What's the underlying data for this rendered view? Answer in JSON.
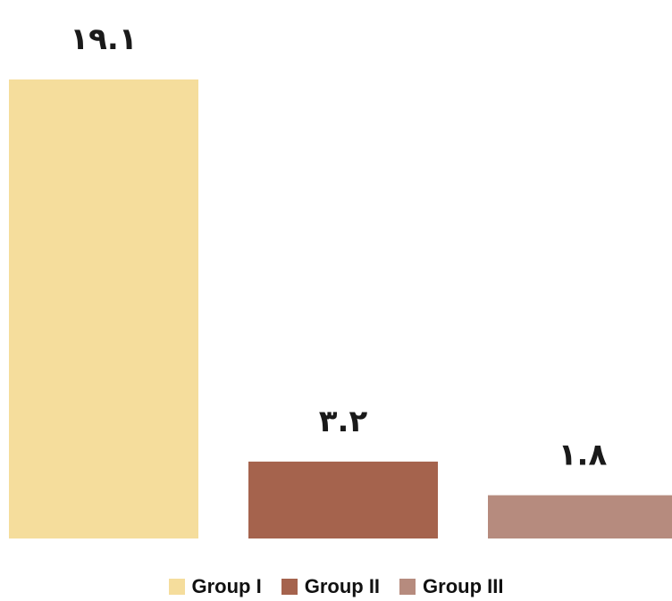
{
  "chart_data": {
    "type": "bar",
    "categories": [
      "Group I",
      "Group II",
      "Group III"
    ],
    "values": [
      19.1,
      3.2,
      1.8
    ],
    "value_labels": [
      "١٩.١",
      "٣.٢",
      "١.٨"
    ],
    "colors": [
      "#F5DD9C",
      "#A5634D",
      "#B68B7E"
    ],
    "title": "",
    "xlabel": "",
    "ylabel": "",
    "ylim": [
      0,
      19.1
    ],
    "grid": false,
    "legend": "bottom-center"
  },
  "legend": {
    "items": [
      {
        "label": "Group I",
        "color": "#F5DD9C"
      },
      {
        "label": "Group II",
        "color": "#A5634D"
      },
      {
        "label": "Group III",
        "color": "#B68B7E"
      }
    ]
  }
}
